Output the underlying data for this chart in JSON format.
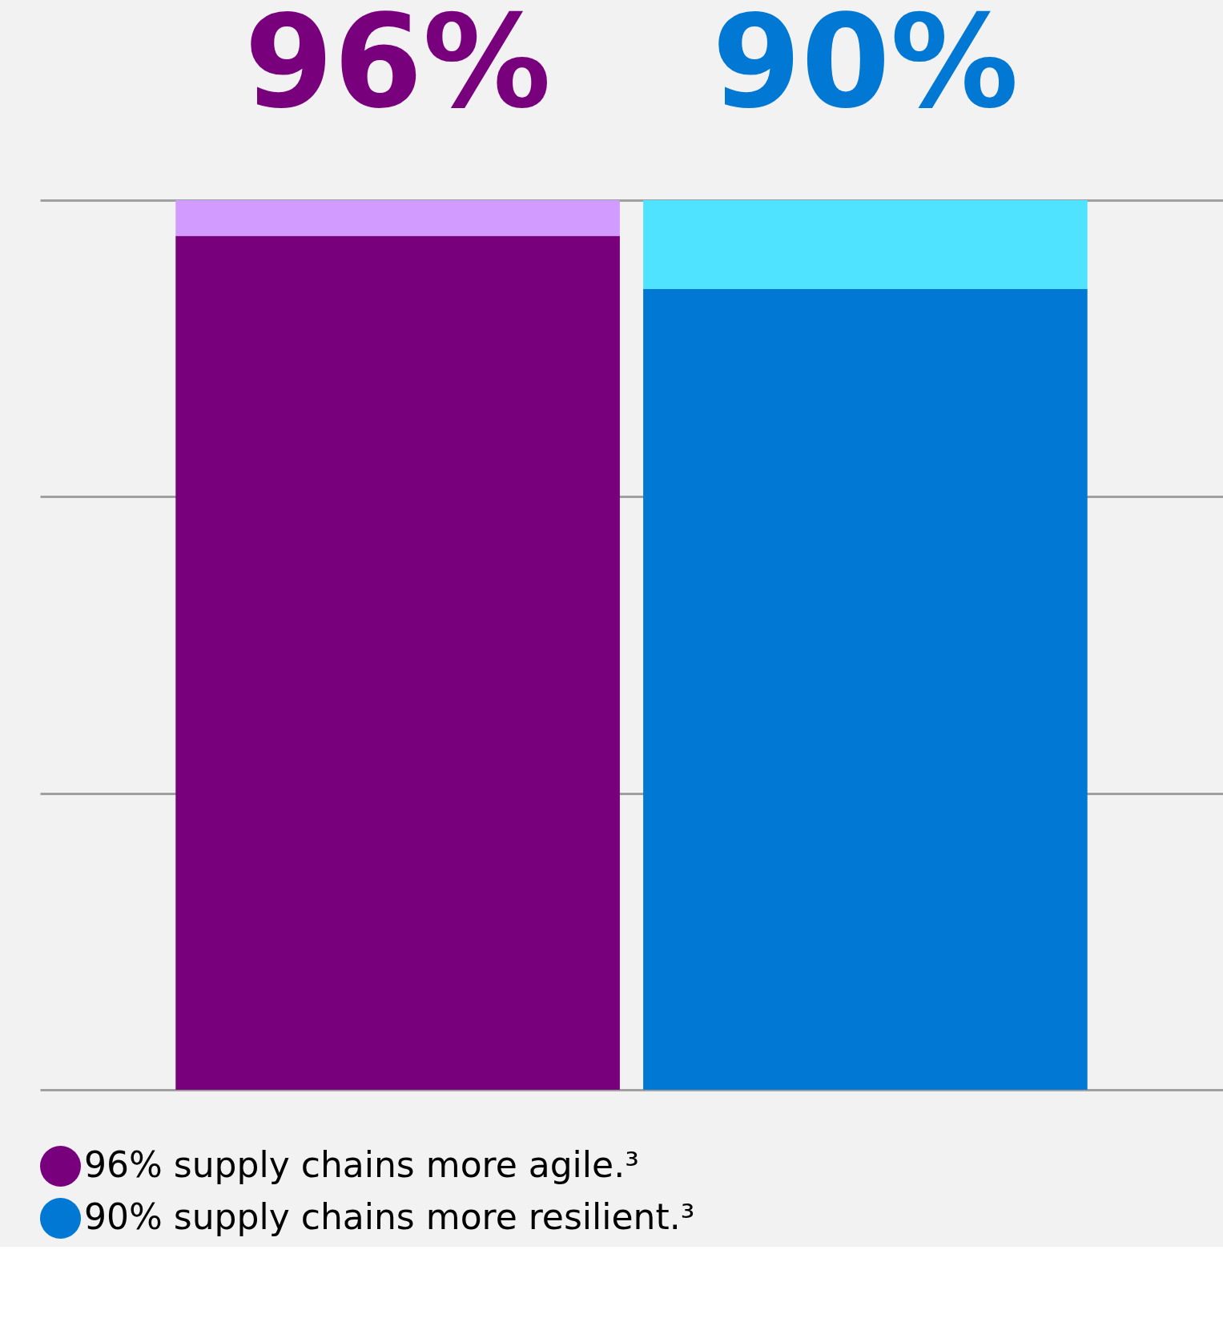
{
  "chart_data": {
    "type": "bar",
    "categories": [
      null,
      null
    ],
    "ylim": [
      0,
      100
    ],
    "yticks": [
      {
        "value": 0,
        "label": null
      },
      {
        "value": 33.3,
        "label": null
      },
      {
        "value": 66.7,
        "label": null
      },
      {
        "value": 100,
        "label": null
      }
    ],
    "grid": "y",
    "tick_labels": false,
    "legend": "bottom",
    "stacked": true,
    "series": [
      {
        "name": "96% supply chains more agile.³",
        "color": "#78007c",
        "values": [
          96,
          null
        ],
        "value_labels": [
          "96%",
          null
        ]
      },
      {
        "name": "90% supply chains more resilient.³",
        "color": "#0078d4",
        "values": [
          null,
          90
        ],
        "value_labels": [
          null,
          "90%"
        ]
      },
      {
        "colors": [
          "#d19bff",
          "#50e3ff"
        ],
        "values": [
          4,
          10
        ]
      }
    ]
  }
}
